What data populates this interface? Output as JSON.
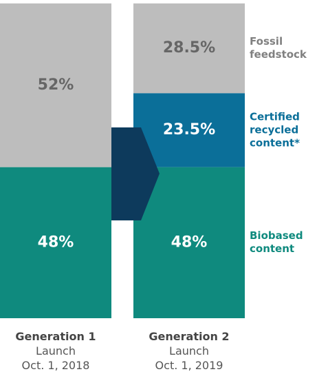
{
  "chart_data": {
    "type": "stacked-bar",
    "categories": [
      "Generation 1",
      "Generation 2"
    ],
    "category_details": [
      [
        "Launch",
        "Oct. 1, 2018"
      ],
      [
        "Launch",
        "Oct. 1, 2019"
      ]
    ],
    "ylim": [
      0,
      100
    ],
    "series": [
      {
        "name": "Biobased content",
        "color": "#0f8a7e",
        "values": [
          48,
          48
        ],
        "value_labels": [
          "48%",
          "48%"
        ]
      },
      {
        "name": "Certified recycled content*",
        "color": "#0b6f99",
        "values": [
          null,
          23.5
        ],
        "value_labels": [
          null,
          "23.5%"
        ]
      },
      {
        "name": "Fossil feedstock",
        "color": "#bdbdbd",
        "values": [
          52,
          28.5
        ],
        "value_labels": [
          "52%",
          "28.5%"
        ]
      }
    ]
  }
}
